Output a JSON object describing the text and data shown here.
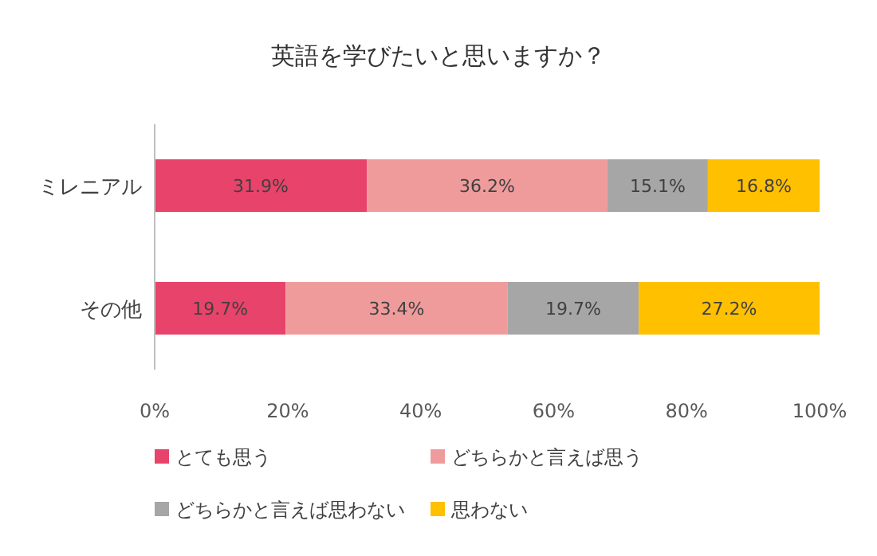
{
  "chart_data": {
    "type": "bar",
    "orientation": "horizontal",
    "stacked": true,
    "title": "英語を学びたいと思いますか？",
    "categories": [
      "ミレニアル",
      "その他"
    ],
    "series": [
      {
        "name": "とても思う",
        "color": "#e8436a",
        "values": [
          31.9,
          19.7
        ],
        "value_labels": [
          "31.9%",
          "19.7%"
        ]
      },
      {
        "name": "どちらかと言えば思う",
        "color": "#f09b9b",
        "values": [
          36.2,
          33.4
        ],
        "value_labels": [
          "36.2%",
          "33.4%"
        ]
      },
      {
        "name": "どちらかと言えば思わない",
        "color": "#a6a6a6",
        "values": [
          15.1,
          19.7
        ],
        "value_labels": [
          "15.1%",
          "19.7%"
        ]
      },
      {
        "name": "思わない",
        "color": "#ffc000",
        "values": [
          16.8,
          27.2
        ],
        "value_labels": [
          "16.8%",
          "27.2%"
        ]
      }
    ],
    "xlim": [
      0,
      100
    ],
    "xticks": [
      {
        "value": 0,
        "label": "0%"
      },
      {
        "value": 20,
        "label": "20%"
      },
      {
        "value": 40,
        "label": "40%"
      },
      {
        "value": 60,
        "label": "60%"
      },
      {
        "value": 80,
        "label": "80%"
      },
      {
        "value": 100,
        "label": "100%"
      }
    ],
    "legend": "bottom"
  }
}
